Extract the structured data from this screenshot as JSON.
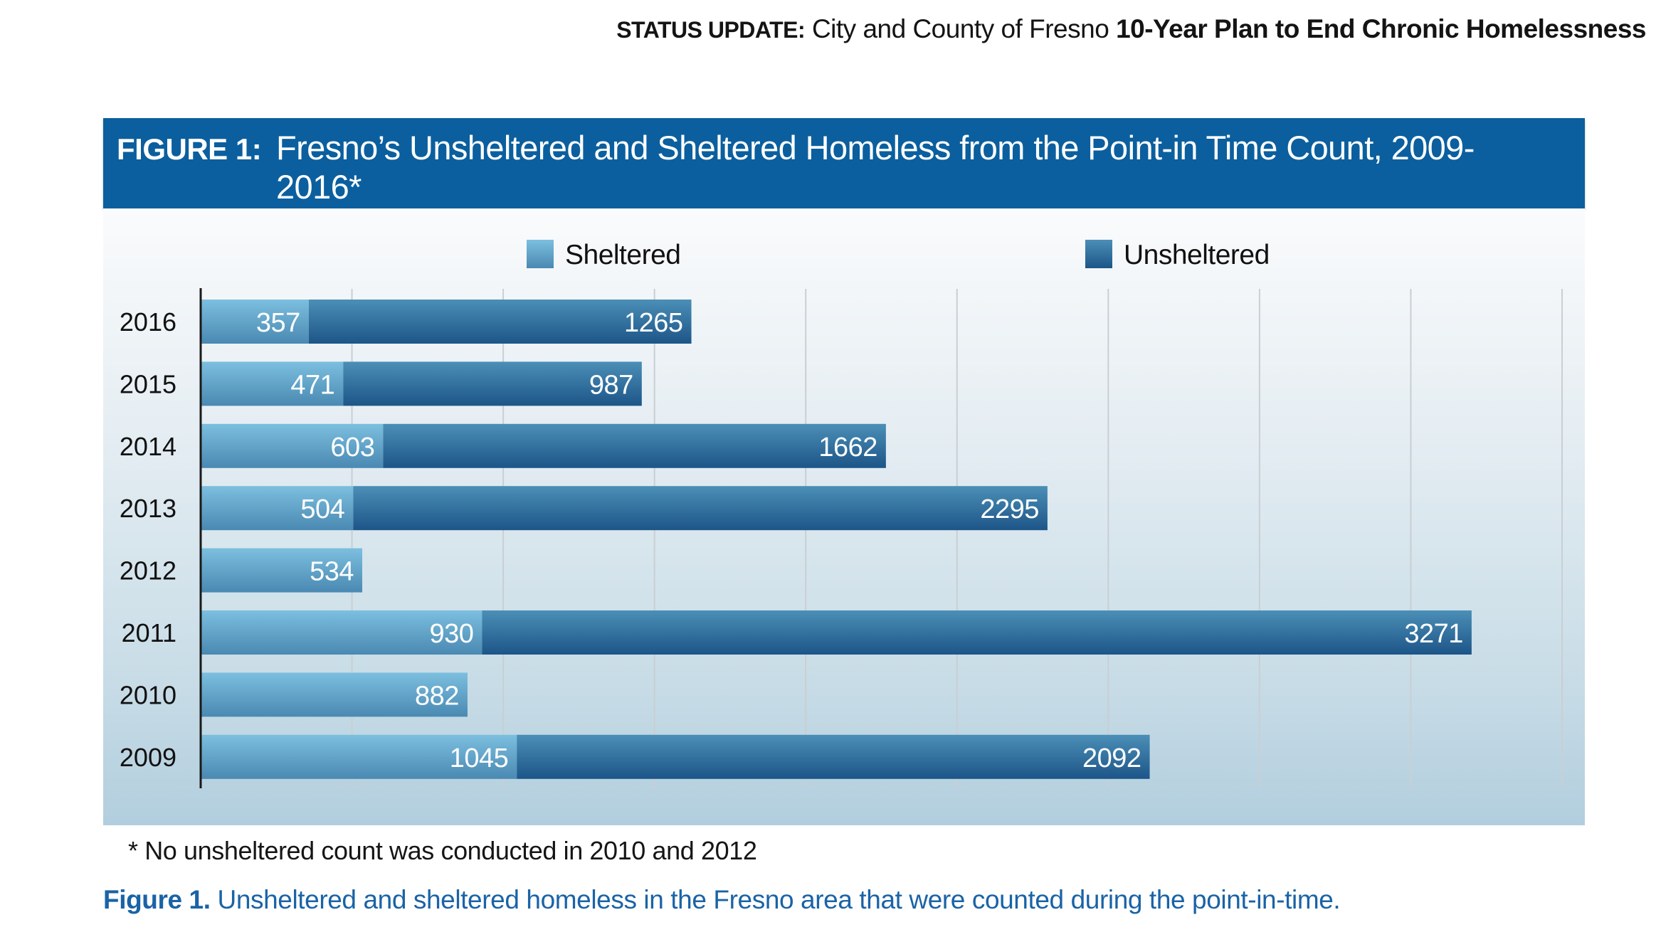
{
  "running_head": {
    "lead": "STATUS UPDATE:",
    "middle": "City and County of Fresno",
    "bold_tail": "10-Year Plan to End Chronic Homelessness"
  },
  "figure": {
    "label": "FIGURE 1:",
    "title": "Fresno’s Unsheltered and Sheltered Homeless from the Point-in Time Count, 2009-2016*"
  },
  "footnote": "* No unsheltered count was conducted in 2010 and 2012",
  "caption": {
    "label": "Figure 1.",
    "text": "Unsheltered and sheltered homeless in the Fresno area that were counted during the point-in-time."
  },
  "colors": {
    "title_band": "#0b5f9e",
    "sheltered_top": "#7cbfdf",
    "sheltered_bottom": "#4a89b2",
    "unsheltered_top": "#4b8fb7",
    "unsheltered_bottom": "#1d5588",
    "caption": "#1a63a6"
  },
  "chart_data": {
    "type": "bar",
    "orientation": "horizontal",
    "stacked": true,
    "title": "Fresno’s Unsheltered and Sheltered Homeless from the Point-in Time Count, 2009-2016*",
    "xlabel": "",
    "ylabel": "",
    "categories": [
      "2016",
      "2015",
      "2014",
      "2013",
      "2012",
      "2011",
      "2010",
      "2009"
    ],
    "series": [
      {
        "name": "Sheltered",
        "values": [
          357,
          471,
          603,
          504,
          534,
          930,
          882,
          1045
        ]
      },
      {
        "name": "Unsheltered",
        "values": [
          1265,
          987,
          1662,
          2295,
          null,
          3271,
          null,
          2092
        ]
      }
    ],
    "xlim": [
      0,
      4500
    ],
    "grid_step": 500,
    "grid": true,
    "x_tick_labels_shown": false,
    "data_labels": true,
    "legend": {
      "position": "top",
      "entries": [
        "Sheltered",
        "Unsheltered"
      ]
    }
  }
}
